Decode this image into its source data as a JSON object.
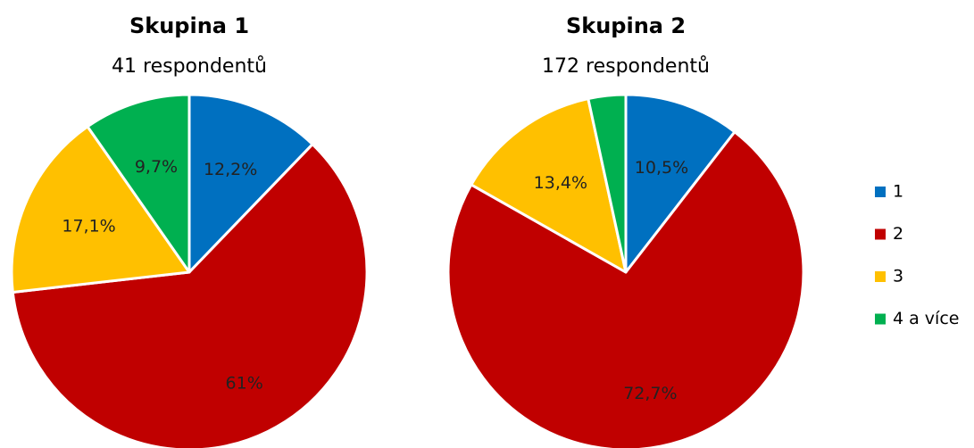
{
  "chart_data": [
    {
      "type": "pie",
      "title": "Skupina 1",
      "subtitle": "41 respondentů",
      "values": [
        12.2,
        61,
        17.1,
        9.7
      ],
      "value_labels": [
        "12,2%",
        "61%",
        "17,1%",
        "9,7%"
      ]
    },
    {
      "type": "pie",
      "title": "Skupina 2",
      "subtitle": "172 respondentů",
      "values": [
        10.5,
        72.7,
        13.4,
        3.4
      ],
      "value_labels": [
        "10,5%",
        "72,7%",
        "13,4%",
        null
      ]
    }
  ],
  "legend": {
    "categories": [
      "1",
      "2",
      "3",
      "4 a více"
    ],
    "colors": [
      "#0070c0",
      "#c00000",
      "#ffc000",
      "#00b050"
    ]
  }
}
